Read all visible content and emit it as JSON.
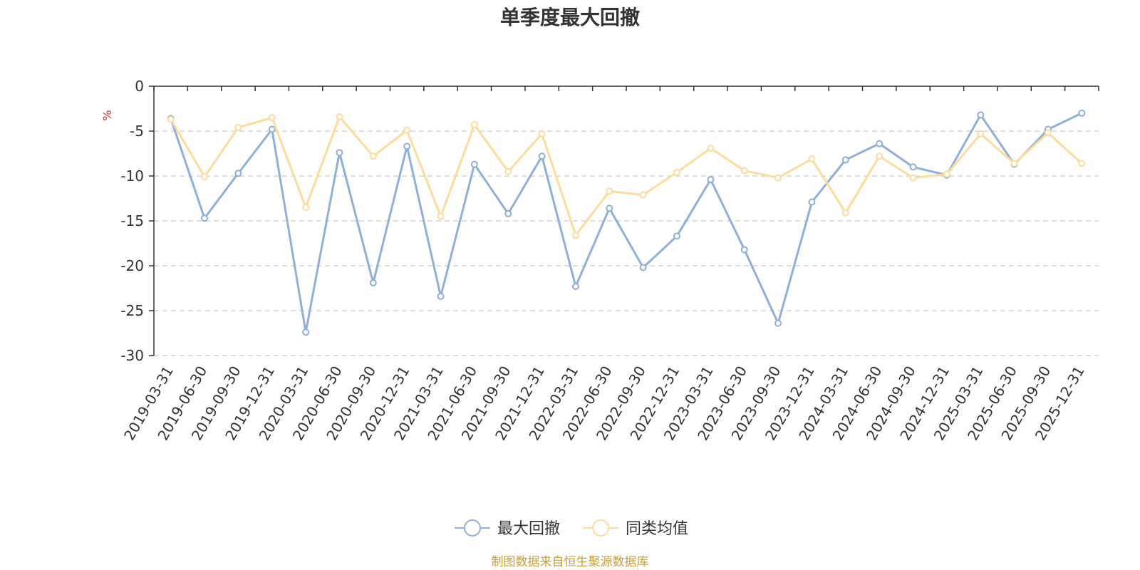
{
  "chart_data": {
    "type": "line",
    "title": "单季度最大回撤",
    "ylabel": "%",
    "ylim": [
      -30,
      0
    ],
    "yticks": [
      0,
      -5,
      -10,
      -15,
      -20,
      -25,
      -30
    ],
    "grid": true,
    "legend_position": "bottom-center",
    "source": "制图数据来自恒生聚源数据库",
    "categories": [
      "2019-03-31",
      "2019-06-30",
      "2019-09-30",
      "2019-12-31",
      "2020-03-31",
      "2020-06-30",
      "2020-09-30",
      "2020-12-31",
      "2021-03-31",
      "2021-06-30",
      "2021-09-30",
      "2021-12-31",
      "2022-03-31",
      "2022-06-30",
      "2022-09-30",
      "2022-12-31",
      "2023-03-31",
      "2023-06-30",
      "2023-09-30",
      "2023-12-31",
      "2024-03-31",
      "2024-06-30",
      "2024-09-30",
      "2024-12-31",
      "2025-03-31",
      "2025-06-30",
      "2025-09-30",
      "2025-12-31"
    ],
    "series": [
      {
        "name": "最大回撤",
        "color": "#8eb0db",
        "values": [
          -3.6,
          -14.7,
          -9.7,
          -4.8,
          -27.4,
          -7.4,
          -21.9,
          -6.7,
          -23.4,
          -8.7,
          -14.2,
          -7.8,
          -22.3,
          -13.6,
          -20.2,
          -16.7,
          -10.4,
          -18.2,
          -26.4,
          -12.9,
          -8.2,
          -6.4,
          -9.0,
          -9.9,
          -3.2,
          -8.7,
          -4.8,
          -3.0
        ]
      },
      {
        "name": "同类均值",
        "color": "#fddc9c",
        "values": [
          -3.7,
          -10.1,
          -4.6,
          -3.5,
          -13.5,
          -3.4,
          -7.8,
          -4.9,
          -14.5,
          -4.3,
          -9.5,
          -5.3,
          -16.6,
          -11.7,
          -12.1,
          -9.6,
          -6.9,
          -9.4,
          -10.2,
          -8.1,
          -14.1,
          -7.8,
          -10.2,
          -9.8,
          -5.3,
          -8.6,
          -5.2,
          -8.6
        ]
      }
    ],
    "colors": {
      "axis": "#333333",
      "grid": "#cccccc",
      "unit": "#e03030",
      "source": "#c8a03c"
    }
  }
}
